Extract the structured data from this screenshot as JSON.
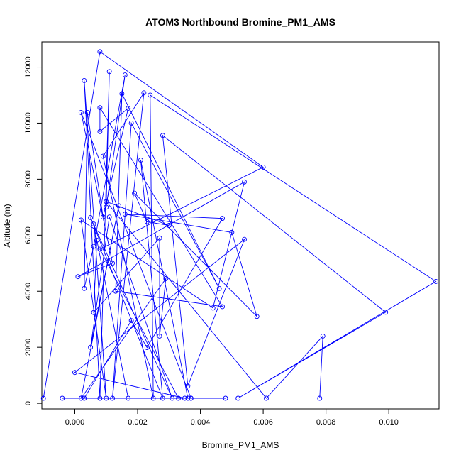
{
  "chart_data": {
    "type": "line",
    "title": "ATOM3 Northbound Bromine_PM1_AMS",
    "xlabel": "Bromine_PM1_AMS",
    "ylabel": "Altitude (m)",
    "xlim": [
      -0.00105,
      0.0116
    ],
    "ylim": [
      -200,
      12900
    ],
    "x_ticks": [
      0.0,
      0.002,
      0.004,
      0.006,
      0.008,
      0.01
    ],
    "x_tick_labels": [
      "0.000",
      "0.002",
      "0.004",
      "0.006",
      "0.008",
      "0.010"
    ],
    "y_ticks": [
      0,
      2000,
      4000,
      6000,
      8000,
      10000,
      12000
    ],
    "y_tick_labels": [
      "0",
      "2000",
      "4000",
      "6000",
      "8000",
      "10000",
      "12000"
    ],
    "grid": false,
    "legend": "none",
    "series": [
      {
        "color": "#0000ff",
        "marker": "open-circle",
        "points": [
          [
            -0.001,
            180
          ],
          [
            0.0008,
            12550
          ],
          [
            0.006,
            8430
          ],
          [
            0.0008,
            5500
          ],
          [
            0.0033,
            180
          ],
          [
            0.0037,
            180
          ],
          [
            0.0002,
            10380
          ],
          [
            0.0012,
            5000
          ],
          [
            0.0001,
            4520
          ],
          [
            0.0054,
            7900
          ],
          [
            0.0044,
            3400
          ],
          [
            0.0002,
            6540
          ],
          [
            0.001,
            180
          ],
          [
            0.0003,
            11520
          ],
          [
            0.0008,
            180
          ],
          [
            0.0011,
            11840
          ],
          [
            0.001,
            7000
          ],
          [
            0.0016,
            11720
          ],
          [
            0.0006,
            5600
          ],
          [
            0.0003,
            4100
          ],
          [
            0.0004,
            10380
          ],
          [
            0.0009,
            6650
          ],
          [
            0.0017,
            10530
          ],
          [
            0.0008,
            9700
          ],
          [
            0.0008,
            10550
          ],
          [
            0.0047,
            3450
          ],
          [
            0.0013,
            4000
          ],
          [
            0.0015,
            11050
          ],
          [
            0.0046,
            4100
          ],
          [
            0.0018,
            10000
          ],
          [
            0.0012,
            180
          ],
          [
            0.0022,
            11080
          ],
          [
            0.0009,
            8820
          ],
          [
            0.0025,
            180
          ],
          [
            0.0024,
            11000
          ],
          [
            0.0115,
            4350
          ],
          [
            0.0052,
            180
          ],
          [
            0.0099,
            3250
          ],
          [
            0.0028,
            9560
          ],
          [
            0.0036,
            620
          ],
          [
            0.0054,
            5850
          ],
          [
            0.0,
            1100
          ],
          [
            0.0035,
            180
          ],
          [
            0.0036,
            180
          ],
          [
            0.0021,
            8680
          ],
          [
            0.0028,
            180
          ],
          [
            0.0005,
            6630
          ],
          [
            0.0031,
            180
          ],
          [
            0.0011,
            6650
          ],
          [
            0.0005,
            2000
          ],
          [
            0.0014,
            7050
          ],
          [
            0.0002,
            180
          ],
          [
            0.0029,
            4450
          ],
          [
            0.0027,
            2400
          ],
          [
            0.0027,
            5900
          ],
          [
            0.0006,
            3240
          ],
          [
            0.0007,
            5820
          ],
          [
            0.0006,
            6400
          ],
          [
            0.0017,
            180
          ],
          [
            0.0048,
            180
          ],
          [
            0.0037,
            180
          ],
          [
            -0.0004,
            180
          ],
          [
            0.0003,
            180
          ],
          [
            0.0018,
            2950
          ],
          [
            0.0023,
            1990
          ],
          [
            0.0047,
            6600
          ],
          [
            0.0016,
            6750
          ],
          [
            0.005,
            6100
          ],
          [
            0.0058,
            3100
          ],
          [
            0.0019,
            7500
          ],
          [
            0.0023,
            6480
          ],
          [
            0.003,
            6350
          ],
          [
            0.001,
            7200
          ],
          [
            0.0061,
            180
          ],
          [
            0.0079,
            2400
          ],
          [
            0.0078,
            180
          ]
        ]
      }
    ]
  }
}
